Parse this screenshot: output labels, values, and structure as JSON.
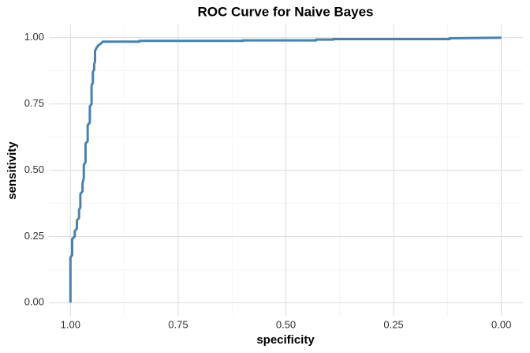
{
  "chart_data": {
    "type": "line",
    "title": "ROC Curve for Naive Bayes",
    "xlabel": "specificity",
    "ylabel": "sensitivity",
    "xlim": [
      1.05,
      -0.05
    ],
    "ylim": [
      -0.05,
      1.05
    ],
    "xticks": [
      {
        "value": 1.0,
        "label": "1.00"
      },
      {
        "value": 0.75,
        "label": "0.75"
      },
      {
        "value": 0.5,
        "label": "0.50"
      },
      {
        "value": 0.25,
        "label": "0.25"
      },
      {
        "value": 0.0,
        "label": "0.00"
      }
    ],
    "yticks": [
      {
        "value": 0.0,
        "label": "0.00"
      },
      {
        "value": 0.25,
        "label": "0.25"
      },
      {
        "value": 0.5,
        "label": "0.50"
      },
      {
        "value": 0.75,
        "label": "0.75"
      },
      {
        "value": 1.0,
        "label": "1.00"
      }
    ],
    "x_minor_ticks": [
      0.875,
      0.625,
      0.375,
      0.125
    ],
    "y_minor_ticks": [
      0.125,
      0.375,
      0.625,
      0.875
    ],
    "grid": true,
    "color": "#4682b4",
    "x": [
      1.0,
      1.0,
      0.996,
      0.996,
      0.99,
      0.99,
      0.985,
      0.985,
      0.98,
      0.98,
      0.977,
      0.977,
      0.972,
      0.972,
      0.969,
      0.969,
      0.965,
      0.965,
      0.96,
      0.96,
      0.955,
      0.955,
      0.951,
      0.951,
      0.948,
      0.948,
      0.945,
      0.945,
      0.943,
      0.943,
      0.94,
      0.936,
      0.932,
      0.928,
      0.925,
      0.84,
      0.84,
      0.6,
      0.6,
      0.43,
      0.43,
      0.39,
      0.39,
      0.12,
      0.12,
      0.0
    ],
    "y": [
      0.0,
      0.17,
      0.18,
      0.24,
      0.25,
      0.27,
      0.28,
      0.31,
      0.32,
      0.35,
      0.36,
      0.41,
      0.42,
      0.45,
      0.47,
      0.52,
      0.53,
      0.6,
      0.61,
      0.67,
      0.68,
      0.74,
      0.75,
      0.82,
      0.83,
      0.87,
      0.88,
      0.9,
      0.91,
      0.95,
      0.96,
      0.97,
      0.975,
      0.98,
      0.985,
      0.985,
      0.988,
      0.988,
      0.99,
      0.99,
      0.993,
      0.993,
      0.995,
      0.995,
      0.998,
      1.0
    ]
  }
}
